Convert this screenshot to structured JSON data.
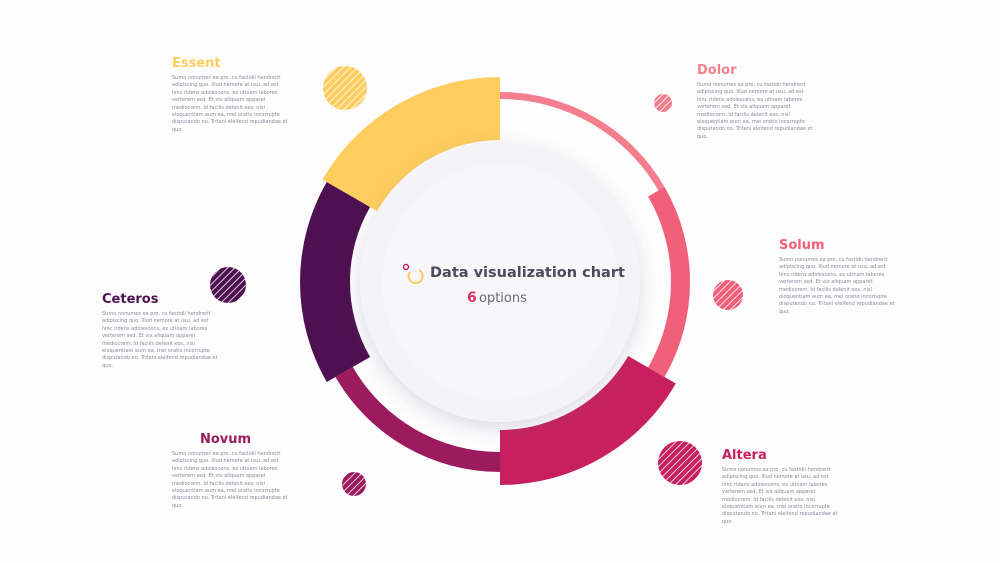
{
  "center": {
    "title": "Data visualization chart",
    "count": "6",
    "subtitle": "options"
  },
  "segments": [
    {
      "label": "Dolor",
      "text": "Sumo nonumes ea pro, cu fastidii hendrerit adipiscing quo. Illud nemore at usu, ad est hinc ridens adolescens, ex utinam labores verterem sed. Et vix aliquam apparet mediocrem. Id facilis delenit eos, nisl eloquentiam eum ea, mei oratio incorrupte disputando no. Tritani eleifend repudiandae et quo."
    },
    {
      "label": "Solum",
      "text": "Sumo nonumes ea pro, cu fastidii hendrerit adipiscing quo. Illud nemore at usu, ad est hinc ridens adolescens, ex utinam labores verterem sed. Et vix aliquam apparet mediocrem. Id facilis delenit eos, nisl eloquentiam eum ea, mei oratio incorrupte disputando no. Tritani eleifend repudiandae et quo."
    },
    {
      "label": "Altera",
      "text": "Sumo nonumes ea pro, cu fastidii hendrerit adipiscing quo. Illud nemore at usu, ad est hinc ridens adolescens, ex utinam labores verterem sed. Et vix aliquam apparet mediocrem. Id facilis delenit eos, nisl eloquentiam eum ea, mei oratio incorrupte disputando no. Tritani eleifend repudiandae et quo."
    },
    {
      "label": "Novum",
      "text": "Sumo nonumes ea pro, cu fastidii hendrerit adipiscing quo. Illud nemore at usu, ad est hinc ridens adolescens, ex utinam labores verterem sed. Et vix aliquam apparet mediocrem. Id facilis delenit eos, nisl eloquentiam eum ea, mei oratio incorrupte disputando no. Tritani eleifend repudiandae et quo."
    },
    {
      "label": "Ceteros",
      "text": "Sumo nonumes ea pro, cu fastidii hendrerit adipiscing quo. Illud nemore at usu, ad est hinc ridens adolescens, ex utinam labores verterem sed. Et vix aliquam apparet mediocrem. Id facilis delenit eos, nisl eloquentiam eum ea, mei oratio incorrupte disputando no. Tritani eleifend repudiandae et quo."
    },
    {
      "label": "Essent",
      "text": "Sumo nonumes ea pro, cu fastidii hendrerit adipiscing quo. Illud nemore at usu, ad est hinc ridens adolescens, ex utinam labores verterem sed. Et vix aliquam apparet mediocrem. Id facilis delenit eos, nisl eloquentiam eum ea, mei oratio incorrupte disputando no. Tritani eleifend repudiandae et quo."
    }
  ],
  "stock_id": "#361974779"
}
